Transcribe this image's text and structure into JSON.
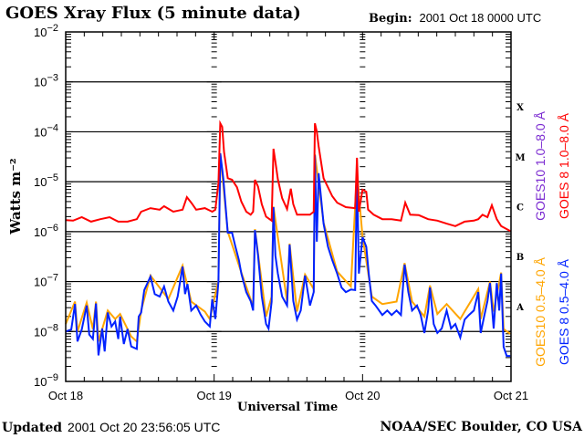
{
  "header": {
    "title": "GOES Xray Flux (5 minute data)",
    "begin_label": "Begin:",
    "begin_value": "2001 Oct 18 0000 UTC"
  },
  "footer": {
    "updated_label": "Updated",
    "updated_value": "2001 Oct 20 23:56:05 UTC",
    "credit": "NOAA/SEC Boulder, CO USA"
  },
  "chart_data": {
    "type": "line",
    "title": "GOES Xray Flux (5 minute data)",
    "xlabel": "Universal Time",
    "ylabel": "Watts m⁻²",
    "y_scale": "log",
    "ylim_log10": [
      -9,
      -2
    ],
    "xlim_hours": [
      0,
      72
    ],
    "x_tick_labels": [
      {
        "hour": 0,
        "label": "Oct 18"
      },
      {
        "hour": 24,
        "label": "Oct 19"
      },
      {
        "hour": 48,
        "label": "Oct 20"
      },
      {
        "hour": 72,
        "label": "Oct 21"
      }
    ],
    "y_tick_labels": [
      {
        "exp": -2,
        "base": "10",
        "sup": "−2"
      },
      {
        "exp": -3,
        "base": "10",
        "sup": "−3"
      },
      {
        "exp": -4,
        "base": "10",
        "sup": "−4"
      },
      {
        "exp": -5,
        "base": "10",
        "sup": "−5"
      },
      {
        "exp": -6,
        "base": "10",
        "sup": "−6"
      },
      {
        "exp": -7,
        "base": "10",
        "sup": "−7"
      },
      {
        "exp": -8,
        "base": "10",
        "sup": "−8"
      },
      {
        "exp": -9,
        "base": "10",
        "sup": "−9"
      }
    ],
    "flare_classes": [
      {
        "label": "X",
        "exp": -3.5
      },
      {
        "label": "M",
        "exp": -4.5
      },
      {
        "label": "C",
        "exp": -5.5
      },
      {
        "label": "B",
        "exp": -6.5
      },
      {
        "label": "A",
        "exp": -7.5
      }
    ],
    "grid": "horizontal lines at each decade",
    "legend": [
      {
        "label": "GOES10 1.0–8.0 Å",
        "color": "#7b2bd1",
        "position": "right-upper-inner"
      },
      {
        "label": "GOES 8 1.0–8.0 Å",
        "color": "#ff0000",
        "position": "right-upper-outer"
      },
      {
        "label": "GOES10 0.5–4.0 Å",
        "color": "#ffa500",
        "position": "right-lower-inner"
      },
      {
        "label": "GOES 8 0.5–4.0 Å",
        "color": "#0022ff",
        "position": "right-lower-outer"
      }
    ],
    "series": [
      {
        "name": "GOES10 0.5-4.0 A",
        "color": "#ffa500",
        "points_hour_log10": [
          [
            0,
            -7.85
          ],
          [
            1.5,
            -7.4
          ],
          [
            1.9,
            -8.0
          ],
          [
            3.4,
            -7.42
          ],
          [
            4.4,
            -7.95
          ],
          [
            4.9,
            -7.4
          ],
          [
            5.3,
            -8.2
          ],
          [
            6.8,
            -7.58
          ],
          [
            8.0,
            -7.75
          ],
          [
            8.8,
            -7.65
          ],
          [
            10.6,
            -8.1
          ],
          [
            11.5,
            -8.2
          ],
          [
            12.2,
            -7.58
          ],
          [
            13.7,
            -6.88
          ],
          [
            16.6,
            -7.35
          ],
          [
            18.9,
            -6.68
          ],
          [
            20.3,
            -7.4
          ],
          [
            22.5,
            -7.6
          ],
          [
            23.3,
            -7.75
          ],
          [
            24.7,
            -6.98
          ],
          [
            25.0,
            -4.43
          ],
          [
            26.2,
            -6.0
          ],
          [
            28.4,
            -6.82
          ],
          [
            30.3,
            -7.5
          ],
          [
            30.6,
            -5.95
          ],
          [
            32.4,
            -7.7
          ],
          [
            33.3,
            -7.3
          ],
          [
            33.6,
            -5.5
          ],
          [
            35.8,
            -7.4
          ],
          [
            36.2,
            -6.24
          ],
          [
            37.4,
            -7.6
          ],
          [
            38.7,
            -6.86
          ],
          [
            40.1,
            -7.15
          ],
          [
            40.3,
            -4.45
          ],
          [
            41.7,
            -5.82
          ],
          [
            43.9,
            -6.8
          ],
          [
            46.1,
            -7.1
          ],
          [
            47.1,
            -4.82
          ],
          [
            48.0,
            -6.1
          ],
          [
            49.5,
            -7.3
          ],
          [
            51.2,
            -7.45
          ],
          [
            53.5,
            -7.4
          ],
          [
            54.8,
            -6.63
          ],
          [
            56.0,
            -7.4
          ],
          [
            58.0,
            -7.7
          ],
          [
            58.9,
            -7.08
          ],
          [
            60.1,
            -7.65
          ],
          [
            61.6,
            -7.45
          ],
          [
            63.8,
            -7.75
          ],
          [
            64.5,
            -7.6
          ],
          [
            66.7,
            -7.15
          ],
          [
            67.1,
            -7.75
          ],
          [
            68.6,
            -7.0
          ],
          [
            69.2,
            -7.6
          ],
          [
            70.4,
            -6.82
          ],
          [
            70.8,
            -7.95
          ],
          [
            71.9,
            -8.05
          ]
        ]
      },
      {
        "name": "GOES 8 0.5-4.0 A",
        "color": "#0022ff",
        "points_hour_log10": [
          [
            0,
            -8.0
          ],
          [
            0.9,
            -7.96
          ],
          [
            1.5,
            -7.45
          ],
          [
            1.9,
            -8.2
          ],
          [
            2.6,
            -7.96
          ],
          [
            3.4,
            -7.48
          ],
          [
            3.8,
            -8.06
          ],
          [
            4.4,
            -8.15
          ],
          [
            4.9,
            -7.44
          ],
          [
            5.3,
            -8.48
          ],
          [
            5.9,
            -7.94
          ],
          [
            6.3,
            -8.4
          ],
          [
            6.8,
            -7.62
          ],
          [
            7.4,
            -7.9
          ],
          [
            8.0,
            -7.8
          ],
          [
            8.5,
            -8.15
          ],
          [
            8.8,
            -7.7
          ],
          [
            9.4,
            -8.25
          ],
          [
            10.0,
            -7.95
          ],
          [
            10.6,
            -8.3
          ],
          [
            11.5,
            -8.35
          ],
          [
            11.8,
            -7.7
          ],
          [
            12.2,
            -7.62
          ],
          [
            12.7,
            -7.17
          ],
          [
            13.7,
            -6.9
          ],
          [
            14.4,
            -7.25
          ],
          [
            15.2,
            -7.3
          ],
          [
            15.9,
            -7.1
          ],
          [
            16.6,
            -7.4
          ],
          [
            17.4,
            -7.58
          ],
          [
            18.1,
            -7.3
          ],
          [
            18.9,
            -6.7
          ],
          [
            19.3,
            -7.25
          ],
          [
            19.7,
            -7.05
          ],
          [
            20.3,
            -7.58
          ],
          [
            21.1,
            -7.48
          ],
          [
            21.8,
            -7.66
          ],
          [
            22.5,
            -7.8
          ],
          [
            23.3,
            -7.9
          ],
          [
            23.7,
            -7.35
          ],
          [
            24.2,
            -7.75
          ],
          [
            24.7,
            -7.0
          ],
          [
            25.0,
            -4.43
          ],
          [
            25.5,
            -4.95
          ],
          [
            26.2,
            -6.02
          ],
          [
            26.9,
            -6.02
          ],
          [
            27.4,
            -6.28
          ],
          [
            28.0,
            -6.57
          ],
          [
            28.4,
            -6.84
          ],
          [
            29.2,
            -7.21
          ],
          [
            29.9,
            -7.39
          ],
          [
            30.3,
            -7.58
          ],
          [
            30.6,
            -5.97
          ],
          [
            31.1,
            -6.48
          ],
          [
            31.7,
            -7.3
          ],
          [
            32.4,
            -7.85
          ],
          [
            32.8,
            -7.94
          ],
          [
            33.3,
            -7.4
          ],
          [
            33.6,
            -5.51
          ],
          [
            33.9,
            -6.48
          ],
          [
            34.3,
            -6.84
          ],
          [
            35.0,
            -7.3
          ],
          [
            35.8,
            -7.48
          ],
          [
            36.2,
            -6.26
          ],
          [
            36.8,
            -7.39
          ],
          [
            37.4,
            -7.76
          ],
          [
            38.0,
            -7.58
          ],
          [
            38.7,
            -6.88
          ],
          [
            39.5,
            -7.48
          ],
          [
            40.1,
            -7.21
          ],
          [
            40.3,
            -4.47
          ],
          [
            40.6,
            -6.2
          ],
          [
            40.9,
            -4.83
          ],
          [
            41.7,
            -5.84
          ],
          [
            42.4,
            -6.3
          ],
          [
            43.1,
            -6.57
          ],
          [
            43.9,
            -6.84
          ],
          [
            44.6,
            -7.12
          ],
          [
            45.3,
            -7.21
          ],
          [
            46.1,
            -7.16
          ],
          [
            46.8,
            -7.17
          ],
          [
            47.1,
            -4.83
          ],
          [
            47.4,
            -6.84
          ],
          [
            48.0,
            -6.11
          ],
          [
            48.6,
            -6.3
          ],
          [
            49.0,
            -6.84
          ],
          [
            49.5,
            -7.39
          ],
          [
            50.1,
            -7.48
          ],
          [
            51.2,
            -7.67
          ],
          [
            52.0,
            -7.58
          ],
          [
            52.7,
            -7.67
          ],
          [
            53.5,
            -7.58
          ],
          [
            54.2,
            -7.67
          ],
          [
            54.8,
            -6.66
          ],
          [
            55.4,
            -7.21
          ],
          [
            56.0,
            -7.58
          ],
          [
            56.8,
            -7.48
          ],
          [
            57.4,
            -7.67
          ],
          [
            58.0,
            -8.03
          ],
          [
            58.6,
            -7.58
          ],
          [
            58.9,
            -7.12
          ],
          [
            59.5,
            -7.85
          ],
          [
            60.1,
            -8.03
          ],
          [
            60.8,
            -7.94
          ],
          [
            61.6,
            -7.58
          ],
          [
            62.3,
            -7.94
          ],
          [
            63.0,
            -7.85
          ],
          [
            63.8,
            -8.12
          ],
          [
            64.5,
            -7.76
          ],
          [
            65.2,
            -7.67
          ],
          [
            66.0,
            -7.58
          ],
          [
            66.7,
            -7.21
          ],
          [
            67.1,
            -8.03
          ],
          [
            67.7,
            -7.67
          ],
          [
            68.2,
            -7.39
          ],
          [
            68.6,
            -7.03
          ],
          [
            69.2,
            -7.94
          ],
          [
            69.7,
            -7.03
          ],
          [
            70.1,
            -7.58
          ],
          [
            70.4,
            -6.84
          ],
          [
            70.8,
            -8.31
          ],
          [
            71.3,
            -8.49
          ],
          [
            71.9,
            -8.49
          ]
        ]
      },
      {
        "name": "GOES 8 1.0-8.0 A",
        "color": "#ff0000",
        "points_hour_log10": [
          [
            0,
            -5.77
          ],
          [
            1.2,
            -5.78
          ],
          [
            2.6,
            -5.71
          ],
          [
            4.1,
            -5.8
          ],
          [
            5.6,
            -5.75
          ],
          [
            7.1,
            -5.71
          ],
          [
            8.5,
            -5.8
          ],
          [
            10.0,
            -5.8
          ],
          [
            11.5,
            -5.75
          ],
          [
            12.2,
            -5.6
          ],
          [
            13.7,
            -5.53
          ],
          [
            15.2,
            -5.56
          ],
          [
            15.9,
            -5.49
          ],
          [
            17.4,
            -5.6
          ],
          [
            18.9,
            -5.56
          ],
          [
            19.6,
            -5.31
          ],
          [
            20.3,
            -5.42
          ],
          [
            21.1,
            -5.56
          ],
          [
            22.5,
            -5.53
          ],
          [
            23.7,
            -5.6
          ],
          [
            24.2,
            -5.56
          ],
          [
            24.7,
            -5.02
          ],
          [
            25.0,
            -3.83
          ],
          [
            25.3,
            -3.9
          ],
          [
            25.6,
            -4.4
          ],
          [
            26.2,
            -4.93
          ],
          [
            26.9,
            -4.96
          ],
          [
            27.7,
            -5.11
          ],
          [
            28.4,
            -5.4
          ],
          [
            29.2,
            -5.6
          ],
          [
            29.9,
            -5.66
          ],
          [
            30.3,
            -5.6
          ],
          [
            30.6,
            -4.96
          ],
          [
            31.1,
            -5.1
          ],
          [
            31.7,
            -5.45
          ],
          [
            32.4,
            -5.7
          ],
          [
            33.3,
            -5.78
          ],
          [
            33.6,
            -4.34
          ],
          [
            33.9,
            -4.6
          ],
          [
            34.3,
            -4.95
          ],
          [
            35.0,
            -5.33
          ],
          [
            35.8,
            -5.55
          ],
          [
            36.4,
            -5.14
          ],
          [
            36.8,
            -5.45
          ],
          [
            37.4,
            -5.66
          ],
          [
            38.7,
            -5.66
          ],
          [
            39.5,
            -5.66
          ],
          [
            40.1,
            -5.6
          ],
          [
            40.3,
            -3.83
          ],
          [
            40.6,
            -4.0
          ],
          [
            40.9,
            -4.29
          ],
          [
            41.7,
            -4.93
          ],
          [
            42.4,
            -5.11
          ],
          [
            43.1,
            -5.29
          ],
          [
            43.9,
            -5.42
          ],
          [
            45.3,
            -5.51
          ],
          [
            46.8,
            -5.53
          ],
          [
            47.1,
            -4.52
          ],
          [
            47.4,
            -5.6
          ],
          [
            48.0,
            -5.16
          ],
          [
            48.6,
            -5.2
          ],
          [
            48.9,
            -5.56
          ],
          [
            49.8,
            -5.66
          ],
          [
            51.2,
            -5.75
          ],
          [
            52.7,
            -5.75
          ],
          [
            54.2,
            -5.78
          ],
          [
            54.9,
            -5.42
          ],
          [
            55.7,
            -5.66
          ],
          [
            57.1,
            -5.67
          ],
          [
            58.6,
            -5.75
          ],
          [
            60.1,
            -5.78
          ],
          [
            61.6,
            -5.84
          ],
          [
            63.0,
            -5.89
          ],
          [
            64.5,
            -5.8
          ],
          [
            66.0,
            -5.78
          ],
          [
            66.7,
            -5.75
          ],
          [
            67.4,
            -5.66
          ],
          [
            68.2,
            -5.71
          ],
          [
            68.9,
            -5.47
          ],
          [
            69.7,
            -5.75
          ],
          [
            70.4,
            -5.89
          ],
          [
            71.9,
            -5.99
          ]
        ]
      }
    ]
  }
}
